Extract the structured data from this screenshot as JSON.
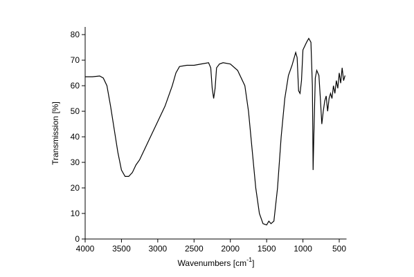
{
  "chart_data": {
    "type": "line",
    "xlabel_parts": [
      "Wavenumbers [cm",
      "-1",
      "]"
    ],
    "ylabel": "Transmission [%]",
    "xlim": [
      4000,
      400
    ],
    "xticks": [
      4000,
      3500,
      3000,
      2500,
      2000,
      1500,
      1000,
      500
    ],
    "ylim": [
      0,
      83
    ],
    "yticks": [
      0,
      10,
      20,
      30,
      40,
      50,
      60,
      70,
      80
    ],
    "series": [
      {
        "color": "#000000",
        "x": [
          4000,
          3900,
          3800,
          3750,
          3700,
          3650,
          3600,
          3550,
          3500,
          3450,
          3400,
          3350,
          3300,
          3250,
          3200,
          3100,
          3000,
          2900,
          2800,
          2750,
          2700,
          2600,
          2500,
          2400,
          2300,
          2270,
          2250,
          2230,
          2210,
          2190,
          2150,
          2100,
          2000,
          1900,
          1800,
          1750,
          1700,
          1650,
          1600,
          1550,
          1500,
          1470,
          1440,
          1400,
          1350,
          1300,
          1250,
          1200,
          1150,
          1100,
          1080,
          1060,
          1040,
          1020,
          1000,
          950,
          920,
          890,
          870,
          860,
          850,
          830,
          810,
          780,
          760,
          740,
          720,
          700,
          680,
          660,
          640,
          620,
          600,
          580,
          560,
          540,
          520,
          500,
          480,
          460,
          440,
          420
        ],
        "values": [
          63.5,
          63.5,
          63.8,
          63,
          60,
          52,
          43,
          34,
          27,
          24.5,
          24.5,
          26,
          29,
          31,
          34,
          40,
          46,
          52,
          60,
          65,
          67.5,
          68,
          68,
          68.5,
          69,
          67,
          59,
          55,
          59,
          67,
          68.5,
          69,
          68.5,
          66,
          60,
          50,
          35,
          20,
          10,
          6,
          5.5,
          7,
          6,
          7,
          20,
          40,
          55,
          64,
          68,
          73,
          71,
          58,
          57,
          62,
          74,
          77,
          78.5,
          77,
          60,
          27,
          40,
          63,
          66,
          64,
          55,
          45,
          50,
          54,
          56,
          50,
          55,
          57,
          55,
          60,
          57,
          62,
          59,
          65,
          61,
          67,
          62,
          64
        ]
      }
    ]
  }
}
